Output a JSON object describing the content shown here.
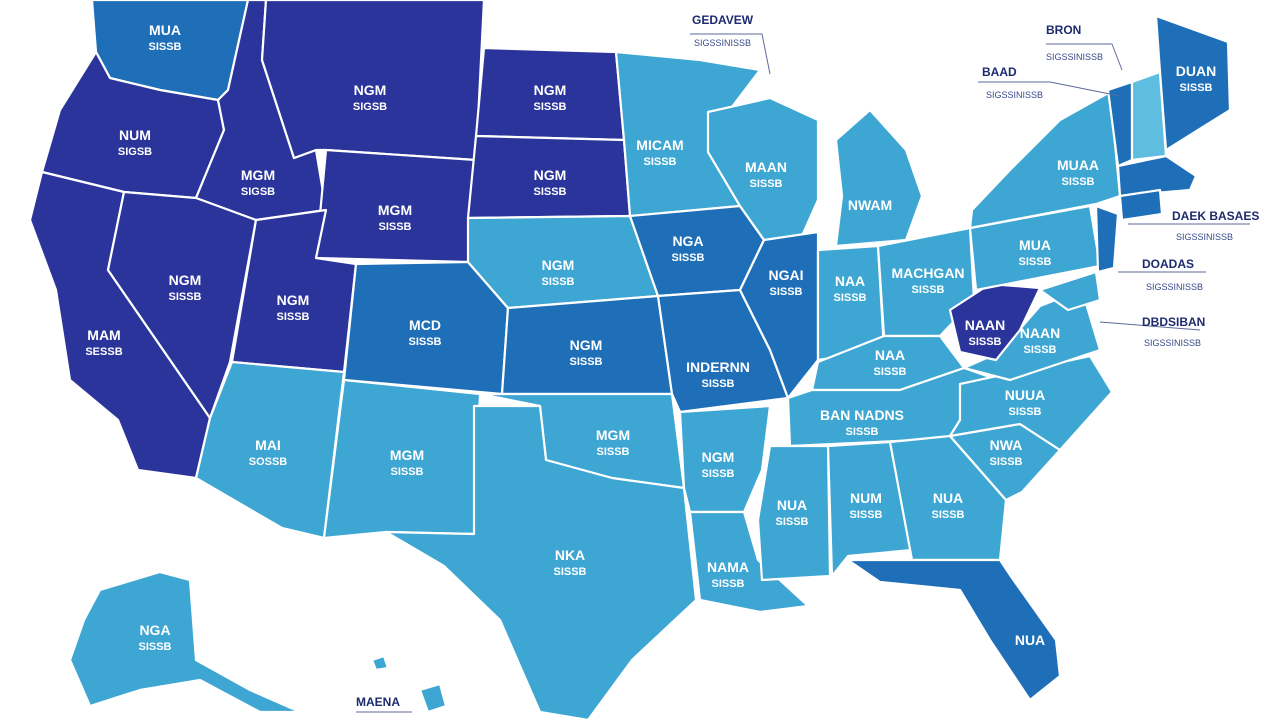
{
  "colors": {
    "dark": "#2a349a",
    "medium": "#1e6fb8",
    "light": "#3ea6d3",
    "pale": "#5fbde0",
    "text": "#ffffff",
    "callout": "#1c2b6e"
  },
  "states": {
    "wa": {
      "name": "MUA",
      "sub": "SISSB"
    },
    "or": {
      "name": "NUM",
      "sub": "SIGSB"
    },
    "ca": {
      "name": "MAM",
      "sub": "SESSB"
    },
    "id": {
      "name": "MGM",
      "sub": "SIGSB"
    },
    "nv": {
      "name": "NGM",
      "sub": "SISSB"
    },
    "mt": {
      "name": "NGM",
      "sub": "SIGSB"
    },
    "wy": {
      "name": "MGM",
      "sub": "SISSB"
    },
    "ut": {
      "name": "NGM",
      "sub": "SISSB"
    },
    "co": {
      "name": "MCD",
      "sub": "SISSB"
    },
    "az": {
      "name": "MAI",
      "sub": "SOSSB"
    },
    "nm": {
      "name": "MGM",
      "sub": "SISSB"
    },
    "nd": {
      "name": "NGM",
      "sub": "SISSB"
    },
    "sd": {
      "name": "NGM",
      "sub": "SISSB"
    },
    "ne": {
      "name": "NGM",
      "sub": "SISSB"
    },
    "ks": {
      "name": "NGM",
      "sub": "SISSB"
    },
    "ok": {
      "name": "MGM",
      "sub": "SISSB"
    },
    "tx": {
      "name": "NKA",
      "sub": "SISSB"
    },
    "mn": {
      "name": "MICAM",
      "sub": "SISSB"
    },
    "ia": {
      "name": "NGA",
      "sub": "SISSB"
    },
    "mo": {
      "name": "INDERNN",
      "sub": "SISSB"
    },
    "ar": {
      "name": "NGM",
      "sub": "SISSB"
    },
    "la": {
      "name": "NAMA",
      "sub": "SISSB"
    },
    "wi": {
      "name": "MAAN",
      "sub": "SISSB"
    },
    "il": {
      "name": "NGAI",
      "sub": "SISSB"
    },
    "mi": {
      "name": "NWAM",
      "sub": ""
    },
    "in": {
      "name": "NAA",
      "sub": "SISSB"
    },
    "oh": {
      "name": "MACHGAN",
      "sub": "SISSB"
    },
    "ky": {
      "name": "NAA",
      "sub": "SISSB"
    },
    "tn": {
      "name": "BAN NADNS",
      "sub": "SISSB"
    },
    "ms": {
      "name": "NUA",
      "sub": "SISSB"
    },
    "al": {
      "name": "NUM",
      "sub": "SISSB"
    },
    "ga": {
      "name": "NUA",
      "sub": "SISSB"
    },
    "fl": {
      "name": "NUA",
      "sub": ""
    },
    "sc": {
      "name": "NWA",
      "sub": "SISSB"
    },
    "nc": {
      "name": "NUUA",
      "sub": "SISSB"
    },
    "va": {
      "name": "NAAN",
      "sub": "SISSB"
    },
    "wv": {
      "name": "NAAN",
      "sub": "SISSB"
    },
    "pa": {
      "name": "MUA",
      "sub": "SISSB"
    },
    "ny": {
      "name": "MUAA",
      "sub": "SISSB"
    },
    "me": {
      "name": "DUAN",
      "sub": "SISSB"
    },
    "ak": {
      "name": "NGA",
      "sub": "SISSB"
    }
  },
  "callouts": {
    "vt": {
      "title": "GEDAVEW",
      "sub": "SIGSSINISSB"
    },
    "nh": {
      "title": "BRON",
      "sub": "SIGSSINISSB"
    },
    "ma": {
      "title": "BAAD",
      "sub": "SIGSSINISSB"
    },
    "ct": {
      "title": "DAEK BASAES",
      "sub": "SIGSSINISSB"
    },
    "nj": {
      "title": "DOADAS",
      "sub": "SIGSSINISSB"
    },
    "de": {
      "title": "DBDSIBAN",
      "sub": "SIGSSINISSB"
    },
    "hi": {
      "title": "MAENA",
      "sub": ""
    }
  }
}
